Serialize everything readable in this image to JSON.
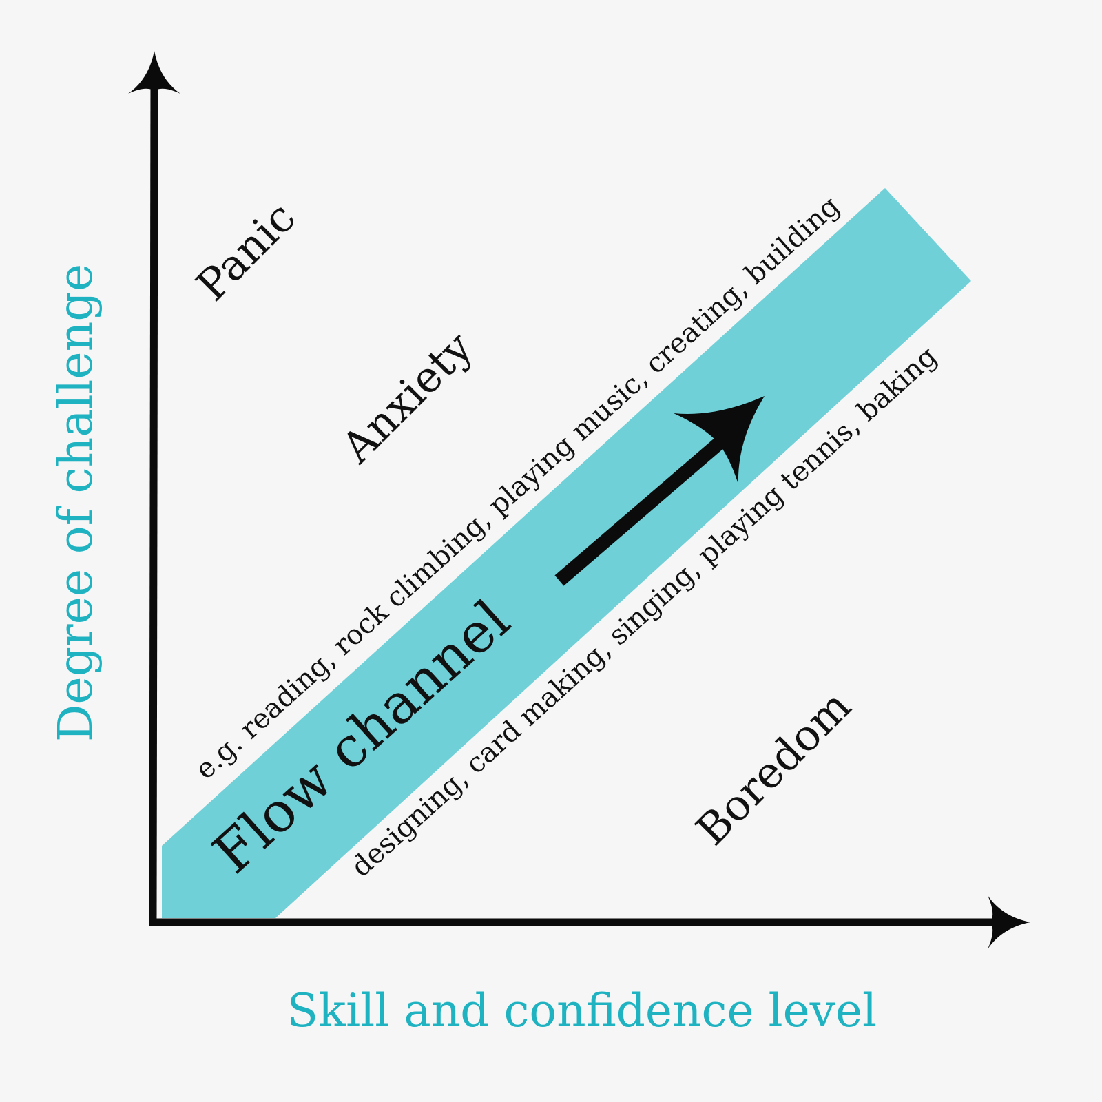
{
  "colors": {
    "background": "#f7f6f6",
    "channel": "#6fd0d8",
    "axis": "#0b0b0b",
    "axis_label": "#1fb3c2",
    "text": "#111111"
  },
  "axes": {
    "y_label": "Degree of challenge",
    "x_label": "Skill and confidence level"
  },
  "regions": {
    "panic": "Panic",
    "anxiety": "Anxiety",
    "boredom": "Boredom",
    "flow": "Flow channel"
  },
  "examples": {
    "upper": "e.g. reading, rock climbing, playing music, creating, building",
    "lower": "designing, card making, singing, playing tennis, baking"
  }
}
